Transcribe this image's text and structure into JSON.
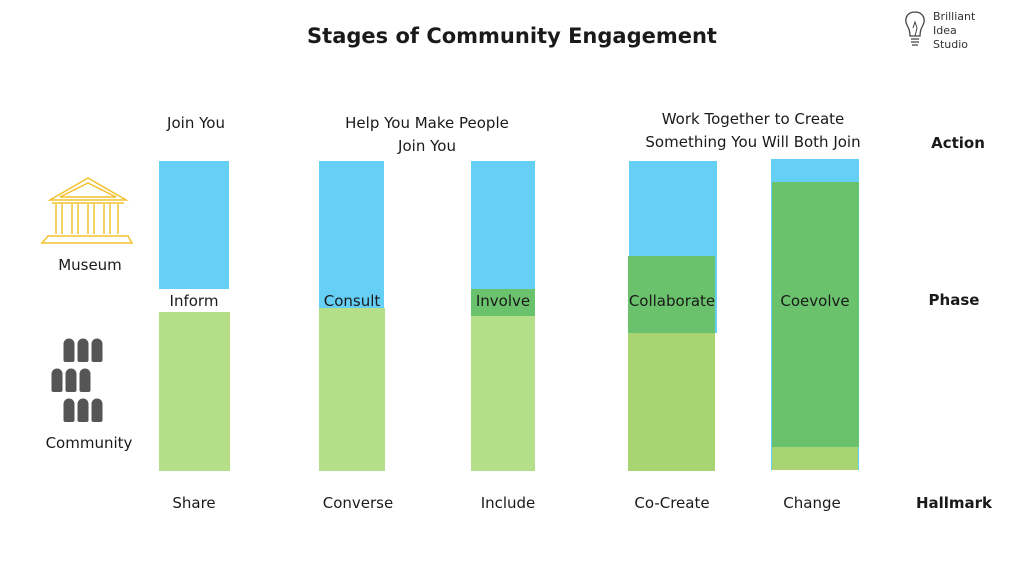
{
  "title": "Stages of Community Engagement",
  "logo": {
    "lines": [
      "Brilliant",
      "Idea",
      "Studio"
    ],
    "icon": "lightbulb-icon"
  },
  "row_labels": {
    "action": "Action",
    "phase": "Phase",
    "hallmark": "Hallmark"
  },
  "actors": {
    "museum": "Museum",
    "community": "Community"
  },
  "actions": {
    "join_you": "Join You",
    "help_line1": "Help You Make People",
    "help_line2": "Join You",
    "together_line1": "Work Together to Create",
    "together_line2": "Something You Will Both Join"
  },
  "stages": [
    {
      "phase": "Inform",
      "hallmark": "Share"
    },
    {
      "phase": "Consult",
      "hallmark": "Converse"
    },
    {
      "phase": "Involve",
      "hallmark": "Include"
    },
    {
      "phase": "Collaborate",
      "hallmark": "Co-Create"
    },
    {
      "phase": "Coevolve",
      "hallmark": "Change"
    }
  ],
  "colors": {
    "museum": "#66CFF6",
    "community": "#B4DE88",
    "shared": "#6BC26C",
    "icon_museum": "#F2C12E",
    "icon_people": "#555555"
  }
}
